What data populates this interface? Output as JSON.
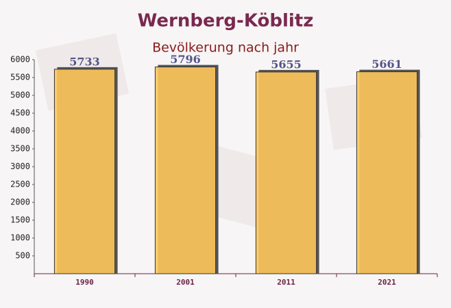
{
  "chart_data": {
    "type": "bar",
    "title": "Wernberg-Köblitz",
    "subtitle": "Bevölkerung nach jahr",
    "categories": [
      "1990",
      "2001",
      "2011",
      "2021"
    ],
    "values": [
      5733,
      5796,
      5655,
      5661
    ],
    "color": "#ffc65c",
    "ylim": [
      0,
      6000
    ],
    "yticks": [
      500,
      1000,
      1500,
      2000,
      2500,
      3000,
      3500,
      4000,
      4500,
      5000,
      5500,
      6000
    ],
    "grid": false
  }
}
